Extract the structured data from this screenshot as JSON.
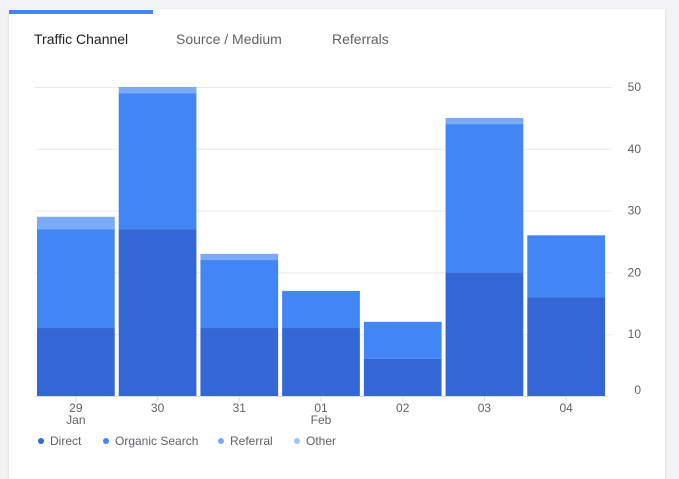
{
  "tabs": [
    {
      "label": "Traffic Channel",
      "active": true
    },
    {
      "label": "Source / Medium",
      "active": false
    },
    {
      "label": "Referrals",
      "active": false
    }
  ],
  "chart_data": {
    "type": "bar",
    "stacked": true,
    "categories": [
      "29 Jan",
      "30",
      "31",
      "01 Feb",
      "02",
      "03",
      "04"
    ],
    "tick_labels": [
      [
        "29",
        "Jan"
      ],
      [
        "30"
      ],
      [
        "31"
      ],
      [
        "01",
        "Feb"
      ],
      [
        "02"
      ],
      [
        "03"
      ],
      [
        "04"
      ]
    ],
    "series": [
      {
        "name": "Direct",
        "color": "#3367d6",
        "values": [
          11,
          27,
          11,
          11,
          6,
          20,
          16
        ]
      },
      {
        "name": "Organic Search",
        "color": "#4285f4",
        "values": [
          16,
          22,
          11,
          6,
          6,
          24,
          10
        ]
      },
      {
        "name": "Referral",
        "color": "#7baaf7",
        "values": [
          2,
          1,
          1,
          0,
          0,
          1,
          0
        ]
      },
      {
        "name": "Other",
        "color": "#a1c2fa",
        "values": [
          0,
          0,
          0,
          0,
          0,
          0,
          0
        ]
      }
    ],
    "y_ticks": [
      "0",
      "10",
      "20",
      "30",
      "40",
      "50"
    ],
    "y_tick_values": [
      0,
      10,
      20,
      30,
      40,
      50
    ],
    "ylim": [
      0,
      50
    ],
    "y_axis_side": "right",
    "grid": true,
    "legend_position": "bottom-left"
  },
  "colors": {
    "accent": "#4285f4",
    "grid": "#e8eaed",
    "text_secondary": "#5f6368",
    "text_primary": "#202124"
  }
}
